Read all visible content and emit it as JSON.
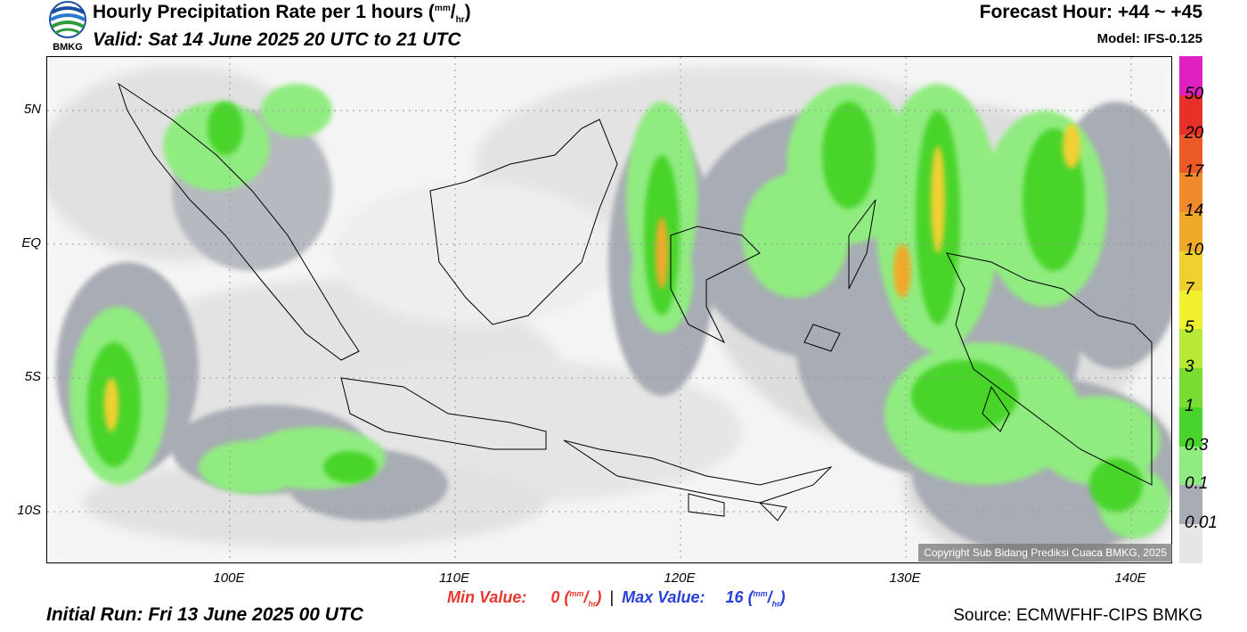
{
  "header": {
    "title": "Hourly Precipitation Rate per 1 hours",
    "unit_num": "mm",
    "unit_den": "hr",
    "valid": "Valid: Sat 14 June 2025 20 UTC to 21 UTC",
    "forecast_hour": "Forecast Hour: +44 ~ +45",
    "model": "Model: IFS-0.125"
  },
  "logo": {
    "text": "BMKG",
    "icon": "bmkg-logo-icon"
  },
  "map": {
    "lat_labels": [
      "5N",
      "EQ",
      "5S",
      "10S"
    ],
    "lon_labels": [
      "100E",
      "110E",
      "120E",
      "130E",
      "140E"
    ],
    "copyright": "Copyright Sub Bidang Prediksi Cuaca BMKG, 2025"
  },
  "legend": {
    "labels": [
      "50",
      "20",
      "17",
      "14",
      "10",
      "7",
      "5",
      "3",
      "1",
      "0.3",
      "0.1",
      "0.01"
    ],
    "colors": [
      "#e020c0",
      "#e8302a",
      "#ec5a28",
      "#f08a2a",
      "#f0aa2a",
      "#f0d030",
      "#f0f030",
      "#b8e838",
      "#78dc32",
      "#48d42c",
      "#90ec80",
      "#a8acb4",
      "#e6e6e6"
    ]
  },
  "footer": {
    "min_label": "Min Value:",
    "min_value": "0",
    "separator": "|",
    "max_label": "Max Value:",
    "max_value": "16",
    "initial_run": "Initial Run: Fri 13 June 2025 00 UTC",
    "source": "Source: ECMWFHF-CIPS BMKG"
  }
}
